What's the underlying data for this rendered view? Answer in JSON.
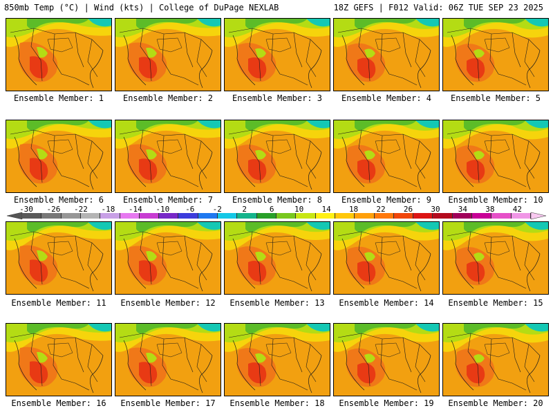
{
  "header": {
    "left": "850mb Temp (°C) | Wind (kts) | College of DuPage NEXLAB",
    "right": "18Z GEFS | F012 Valid: 06Z TUE SEP 23 2025"
  },
  "members": [
    "Ensemble Member: 1",
    "Ensemble Member: 2",
    "Ensemble Member: 3",
    "Ensemble Member: 4",
    "Ensemble Member: 5",
    "Ensemble Member: 6",
    "Ensemble Member: 7",
    "Ensemble Member: 8",
    "Ensemble Member: 9",
    "Ensemble Member: 10",
    "Ensemble Member: 11",
    "Ensemble Member: 12",
    "Ensemble Member: 13",
    "Ensemble Member: 14",
    "Ensemble Member: 15",
    "Ensemble Member: 16",
    "Ensemble Member: 17",
    "Ensemble Member: 18",
    "Ensemble Member: 19",
    "Ensemble Member: 20"
  ],
  "colorbar": {
    "labels": [
      "-30",
      "-26",
      "-22",
      "-18",
      "-14",
      "-10",
      "-6",
      "-2",
      "2",
      "6",
      "10",
      "14",
      "18",
      "22",
      "26",
      "30",
      "34",
      "38",
      "42"
    ],
    "colors": [
      "#5a5a5a",
      "#787878",
      "#969696",
      "#b4b4b4",
      "#c8a0e6",
      "#e678f0",
      "#c83cd2",
      "#7828c8",
      "#3c3cdc",
      "#1e78f0",
      "#14c8e6",
      "#14b48c",
      "#28a028",
      "#78c81e",
      "#c8e614",
      "#fff014",
      "#ffc80a",
      "#ffa00a",
      "#ff780a",
      "#f0460a",
      "#dc1414",
      "#b40a1e",
      "#a0005a",
      "#c80096",
      "#e650c8",
      "#f096e6"
    ]
  },
  "map_colors": {
    "hot": "#e83a14",
    "warm": "#f07818",
    "orange": "#f2a010",
    "yellow": "#f6d40c",
    "lime": "#b4dc14",
    "green": "#5cbc28",
    "cyan": "#14c8b4",
    "water_line": "#1a1a1a"
  }
}
